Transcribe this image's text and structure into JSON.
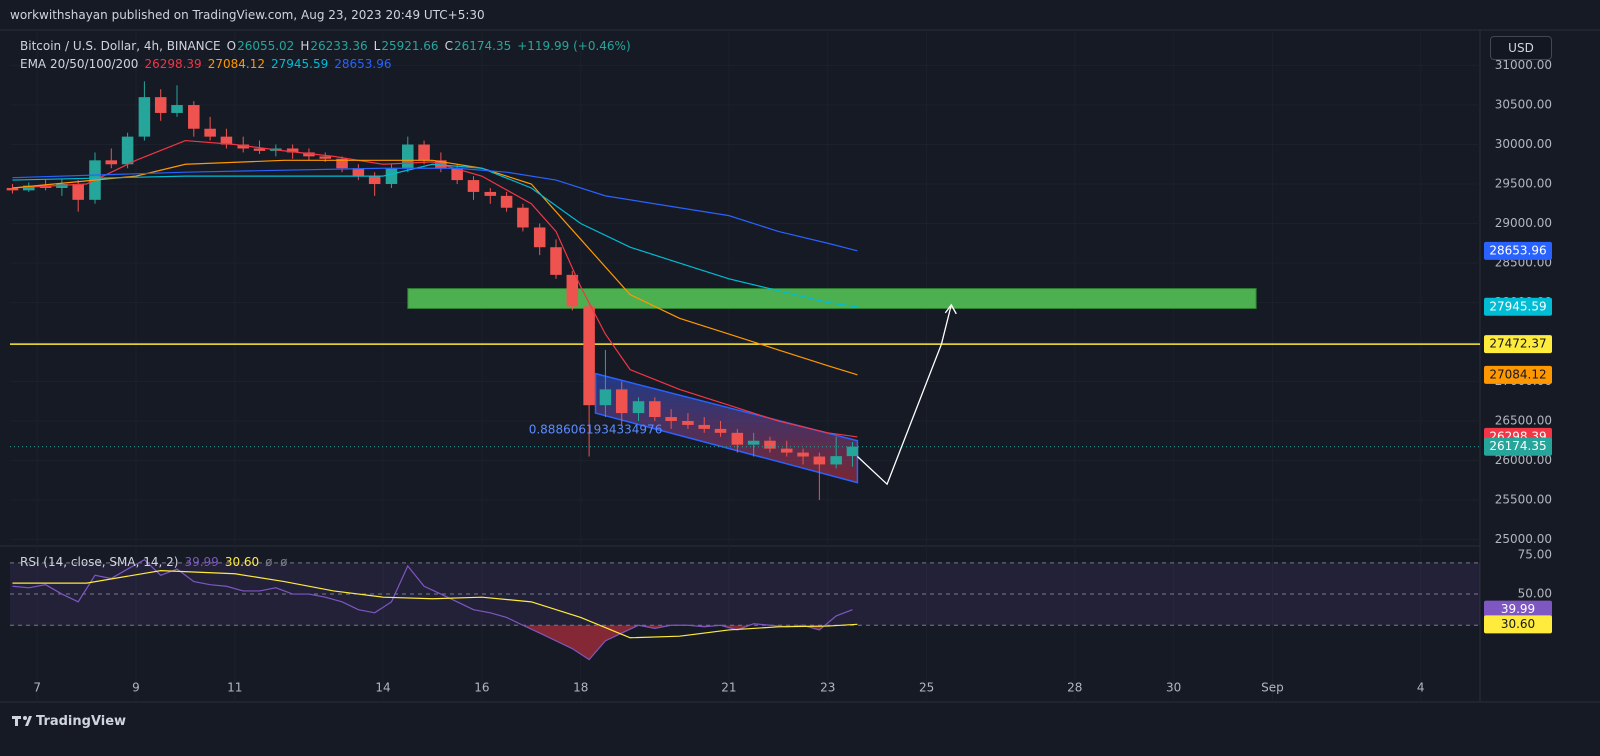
{
  "header": {
    "publisher": "workwithshayan published on TradingView.com, Aug 23, 2023 20:49 UTC+5:30",
    "currency_button": "USD",
    "logo": "TradingView"
  },
  "chart_data": [
    {
      "type": "candlestick",
      "title": "Bitcoin / U.S. Dollar, 4h, BINANCE",
      "ohlc_letters": [
        "O",
        "H",
        "L",
        "C"
      ],
      "change": "+119.99 (+0.46%)",
      "up_color": "#26a69a",
      "down_color": "#ef5350",
      "x": [
        6.5,
        6.83,
        7.17,
        7.5,
        7.83,
        8.17,
        8.5,
        8.83,
        9.17,
        9.5,
        9.83,
        10.17,
        10.5,
        10.83,
        11.17,
        11.5,
        11.83,
        12.17,
        12.5,
        12.83,
        13.17,
        13.5,
        13.83,
        14.17,
        14.5,
        14.83,
        15.17,
        15.5,
        15.83,
        16.17,
        16.5,
        16.83,
        17.17,
        17.5,
        17.83,
        18.17,
        18.5,
        18.83,
        19.17,
        19.5,
        19.83,
        20.17,
        20.5,
        20.83,
        21.17,
        21.5,
        21.83,
        22.17,
        22.5,
        22.83,
        23.17,
        23.5
      ],
      "open": [
        29450,
        29420,
        29480,
        29450,
        29500,
        29300,
        29800,
        29750,
        30100,
        30600,
        30400,
        30500,
        30200,
        30100,
        30000,
        29950,
        29920,
        29950,
        29900,
        29850,
        29820,
        29700,
        29600,
        29500,
        29700,
        30000,
        29800,
        29700,
        29550,
        29400,
        29350,
        29200,
        28950,
        28700,
        28350,
        27950,
        26700,
        26900,
        26600,
        26750,
        26550,
        26500,
        26450,
        26400,
        26350,
        26200,
        26250,
        26150,
        26100,
        26050,
        25950,
        26055.02
      ],
      "high": [
        29500,
        29520,
        29560,
        29560,
        29550,
        29900,
        29950,
        30150,
        30800,
        30700,
        30750,
        30550,
        30350,
        30200,
        30100,
        30050,
        30000,
        30000,
        29950,
        29900,
        29850,
        29750,
        29650,
        29750,
        30100,
        30050,
        29900,
        29750,
        29600,
        29450,
        29400,
        29250,
        29000,
        28800,
        28400,
        28000,
        27400,
        27000,
        26800,
        26800,
        26650,
        26600,
        26550,
        26500,
        26400,
        26350,
        26300,
        26250,
        26150,
        26100,
        26300,
        26233.36
      ],
      "low": [
        29380,
        29400,
        29420,
        29350,
        29150,
        29250,
        29700,
        29700,
        30050,
        30300,
        30350,
        30100,
        30050,
        29950,
        29900,
        29880,
        29850,
        29820,
        29800,
        29780,
        29650,
        29550,
        29350,
        29450,
        29650,
        29750,
        29650,
        29500,
        29300,
        29250,
        29150,
        28900,
        28600,
        28300,
        27900,
        26050,
        26550,
        26450,
        26500,
        26500,
        26400,
        26400,
        26350,
        26300,
        26100,
        26050,
        26100,
        26050,
        25950,
        25500,
        25900,
        25921.66
      ],
      "close": [
        29420,
        29480,
        29450,
        29500,
        29300,
        29800,
        29750,
        30100,
        30600,
        30400,
        30500,
        30200,
        30100,
        30000,
        29950,
        29920,
        29950,
        29900,
        29850,
        29820,
        29700,
        29600,
        29500,
        29700,
        30000,
        29800,
        29700,
        29550,
        29400,
        29350,
        29200,
        28950,
        28700,
        28350,
        27950,
        26700,
        26900,
        26600,
        26750,
        26550,
        26500,
        26450,
        26400,
        26350,
        26200,
        26250,
        26150,
        26100,
        26050,
        25950,
        26055.02,
        26174.35
      ],
      "xlim": [
        6.45,
        36.2
      ],
      "xticks": [
        7,
        9,
        11,
        14,
        16,
        18,
        21,
        23,
        25,
        28,
        30,
        {
          "value": 32,
          "label": "Sep"
        },
        {
          "value": 35,
          "label": "4"
        }
      ],
      "ylim": [
        24930,
        31450
      ],
      "yticks": [
        {
          "value": 25000,
          "label": "25000.00"
        },
        {
          "value": 25500,
          "label": "25500.00"
        },
        {
          "value": 26000,
          "label": "26000.00"
        },
        {
          "value": 26500,
          "label": "26500.00"
        },
        {
          "value": 27000,
          "label": "27000.00"
        },
        {
          "value": 27500,
          "label": "27500.00"
        },
        {
          "value": 28000,
          "label": "28000.00"
        },
        {
          "value": 28500,
          "label": "28500.00"
        },
        {
          "value": 29000,
          "label": "29000.00"
        },
        {
          "value": 29500,
          "label": "29500.00"
        },
        {
          "value": 30000,
          "label": "30000.00"
        },
        {
          "value": 30500,
          "label": "30500.00"
        },
        {
          "value": 31000,
          "label": "31000.00"
        }
      ],
      "overlay_label": "EMA 20/50/100/200",
      "series": [
        {
          "color": "#f23645",
          "x": [
            6.5,
            8,
            9,
            10,
            11,
            12,
            13,
            14,
            15,
            16,
            17,
            17.5,
            18,
            18.5,
            19,
            20,
            21,
            22,
            23,
            23.6
          ],
          "values": [
            29450,
            29500,
            29800,
            30050,
            30000,
            29920,
            29850,
            29750,
            29780,
            29600,
            29250,
            28900,
            28200,
            27600,
            27150,
            26900,
            26700,
            26500,
            26350,
            26298.39
          ]
        },
        {
          "color": "#ff9800",
          "x": [
            6.5,
            9,
            10,
            12,
            14,
            15,
            16,
            17,
            18,
            19,
            20,
            21,
            22,
            23,
            23.6
          ],
          "values": [
            29450,
            29600,
            29750,
            29800,
            29800,
            29800,
            29700,
            29500,
            28800,
            28100,
            27800,
            27600,
            27400,
            27200,
            27084.12
          ]
        },
        {
          "color": "#00bcd4",
          "x": [
            6.5,
            10,
            14,
            15,
            16,
            17,
            18,
            19,
            20,
            21,
            22,
            23,
            23.6
          ],
          "values": [
            29550,
            29600,
            29600,
            29750,
            29700,
            29450,
            29000,
            28700,
            28500,
            28300,
            28150,
            28000,
            27945.59
          ]
        },
        {
          "color": "#2962ff",
          "x": [
            6.5,
            10,
            14,
            15.5,
            16.5,
            17.5,
            18.5,
            20,
            21,
            22,
            23,
            23.6
          ],
          "values": [
            29580,
            29650,
            29700,
            29700,
            29650,
            29550,
            29350,
            29200,
            29100,
            28900,
            28750,
            28653.96
          ]
        }
      ],
      "annotations": {
        "zone": {
          "x": [
            14.5,
            31.67
          ],
          "y": [
            27924,
            28177
          ],
          "color": "#4caf50"
        },
        "hline": {
          "value": 27472.37,
          "color": "#ffeb3b"
        },
        "channel": {
          "x": [
            18.3,
            23.6
          ],
          "upper": [
            27100,
            26250
          ],
          "lower": [
            26600,
            25720
          ],
          "color": "#2962ff",
          "label": "0.8886061934334976"
        },
        "arrow": {
          "x": [
            23.6,
            24.2,
            25.3,
            25.5
          ],
          "y": [
            26050,
            25700,
            27472,
            27970
          ],
          "color": "#ffffff"
        }
      }
    },
    {
      "type": "line",
      "title": "RSI (14, close, SMA, 14, 2)",
      "extra": "ø  ø",
      "x": [
        6.5,
        6.83,
        7.17,
        7.5,
        7.83,
        8.17,
        8.5,
        8.83,
        9.17,
        9.5,
        9.83,
        10.17,
        10.5,
        10.83,
        11.17,
        11.5,
        11.83,
        12.17,
        12.5,
        12.83,
        13.17,
        13.5,
        13.83,
        14.17,
        14.5,
        14.83,
        15.17,
        15.5,
        15.83,
        16.17,
        16.5,
        16.83,
        17.17,
        17.5,
        17.83,
        18.17,
        18.5,
        18.83,
        19.17,
        19.5,
        19.83,
        20.17,
        20.5,
        20.83,
        21.17,
        21.5,
        21.83,
        22.17,
        22.5,
        22.83,
        23.17,
        23.5
      ],
      "ylim": [
        -2.5,
        79.5
      ],
      "yticks": [
        {
          "value": 50,
          "label": "50.00"
        },
        {
          "value": 75,
          "label": "75.00"
        }
      ],
      "levels": [
        70,
        50,
        30
      ],
      "band_color": "#7e57c2",
      "oversold_color": "#f23645",
      "series": [
        {
          "color": "#7e57c2",
          "values": [
            55,
            54,
            56,
            50,
            45,
            62,
            60,
            66,
            72,
            62,
            66,
            58,
            56,
            55,
            52,
            52,
            54,
            50,
            50,
            48,
            45,
            40,
            38,
            45,
            68,
            55,
            50,
            45,
            40,
            38,
            35,
            30,
            25,
            20,
            15,
            8,
            20,
            25,
            30,
            28,
            30,
            30,
            29,
            30,
            27,
            31,
            30,
            29,
            30,
            27,
            36,
            39.99
          ]
        },
        {
          "color": "#ffeb3b",
          "x": [
            6.5,
            8,
            9.5,
            11,
            12,
            13,
            14,
            15,
            16,
            17,
            18,
            19,
            20,
            21,
            22,
            23,
            23.6
          ],
          "values": [
            57,
            57,
            65,
            63,
            58,
            52,
            48,
            47,
            48,
            45,
            35,
            22,
            23,
            27,
            29,
            29.5,
            30.6
          ],
          "last": {
            "value": 30.6,
            "label": "30.60"
          }
        }
      ]
    }
  ]
}
